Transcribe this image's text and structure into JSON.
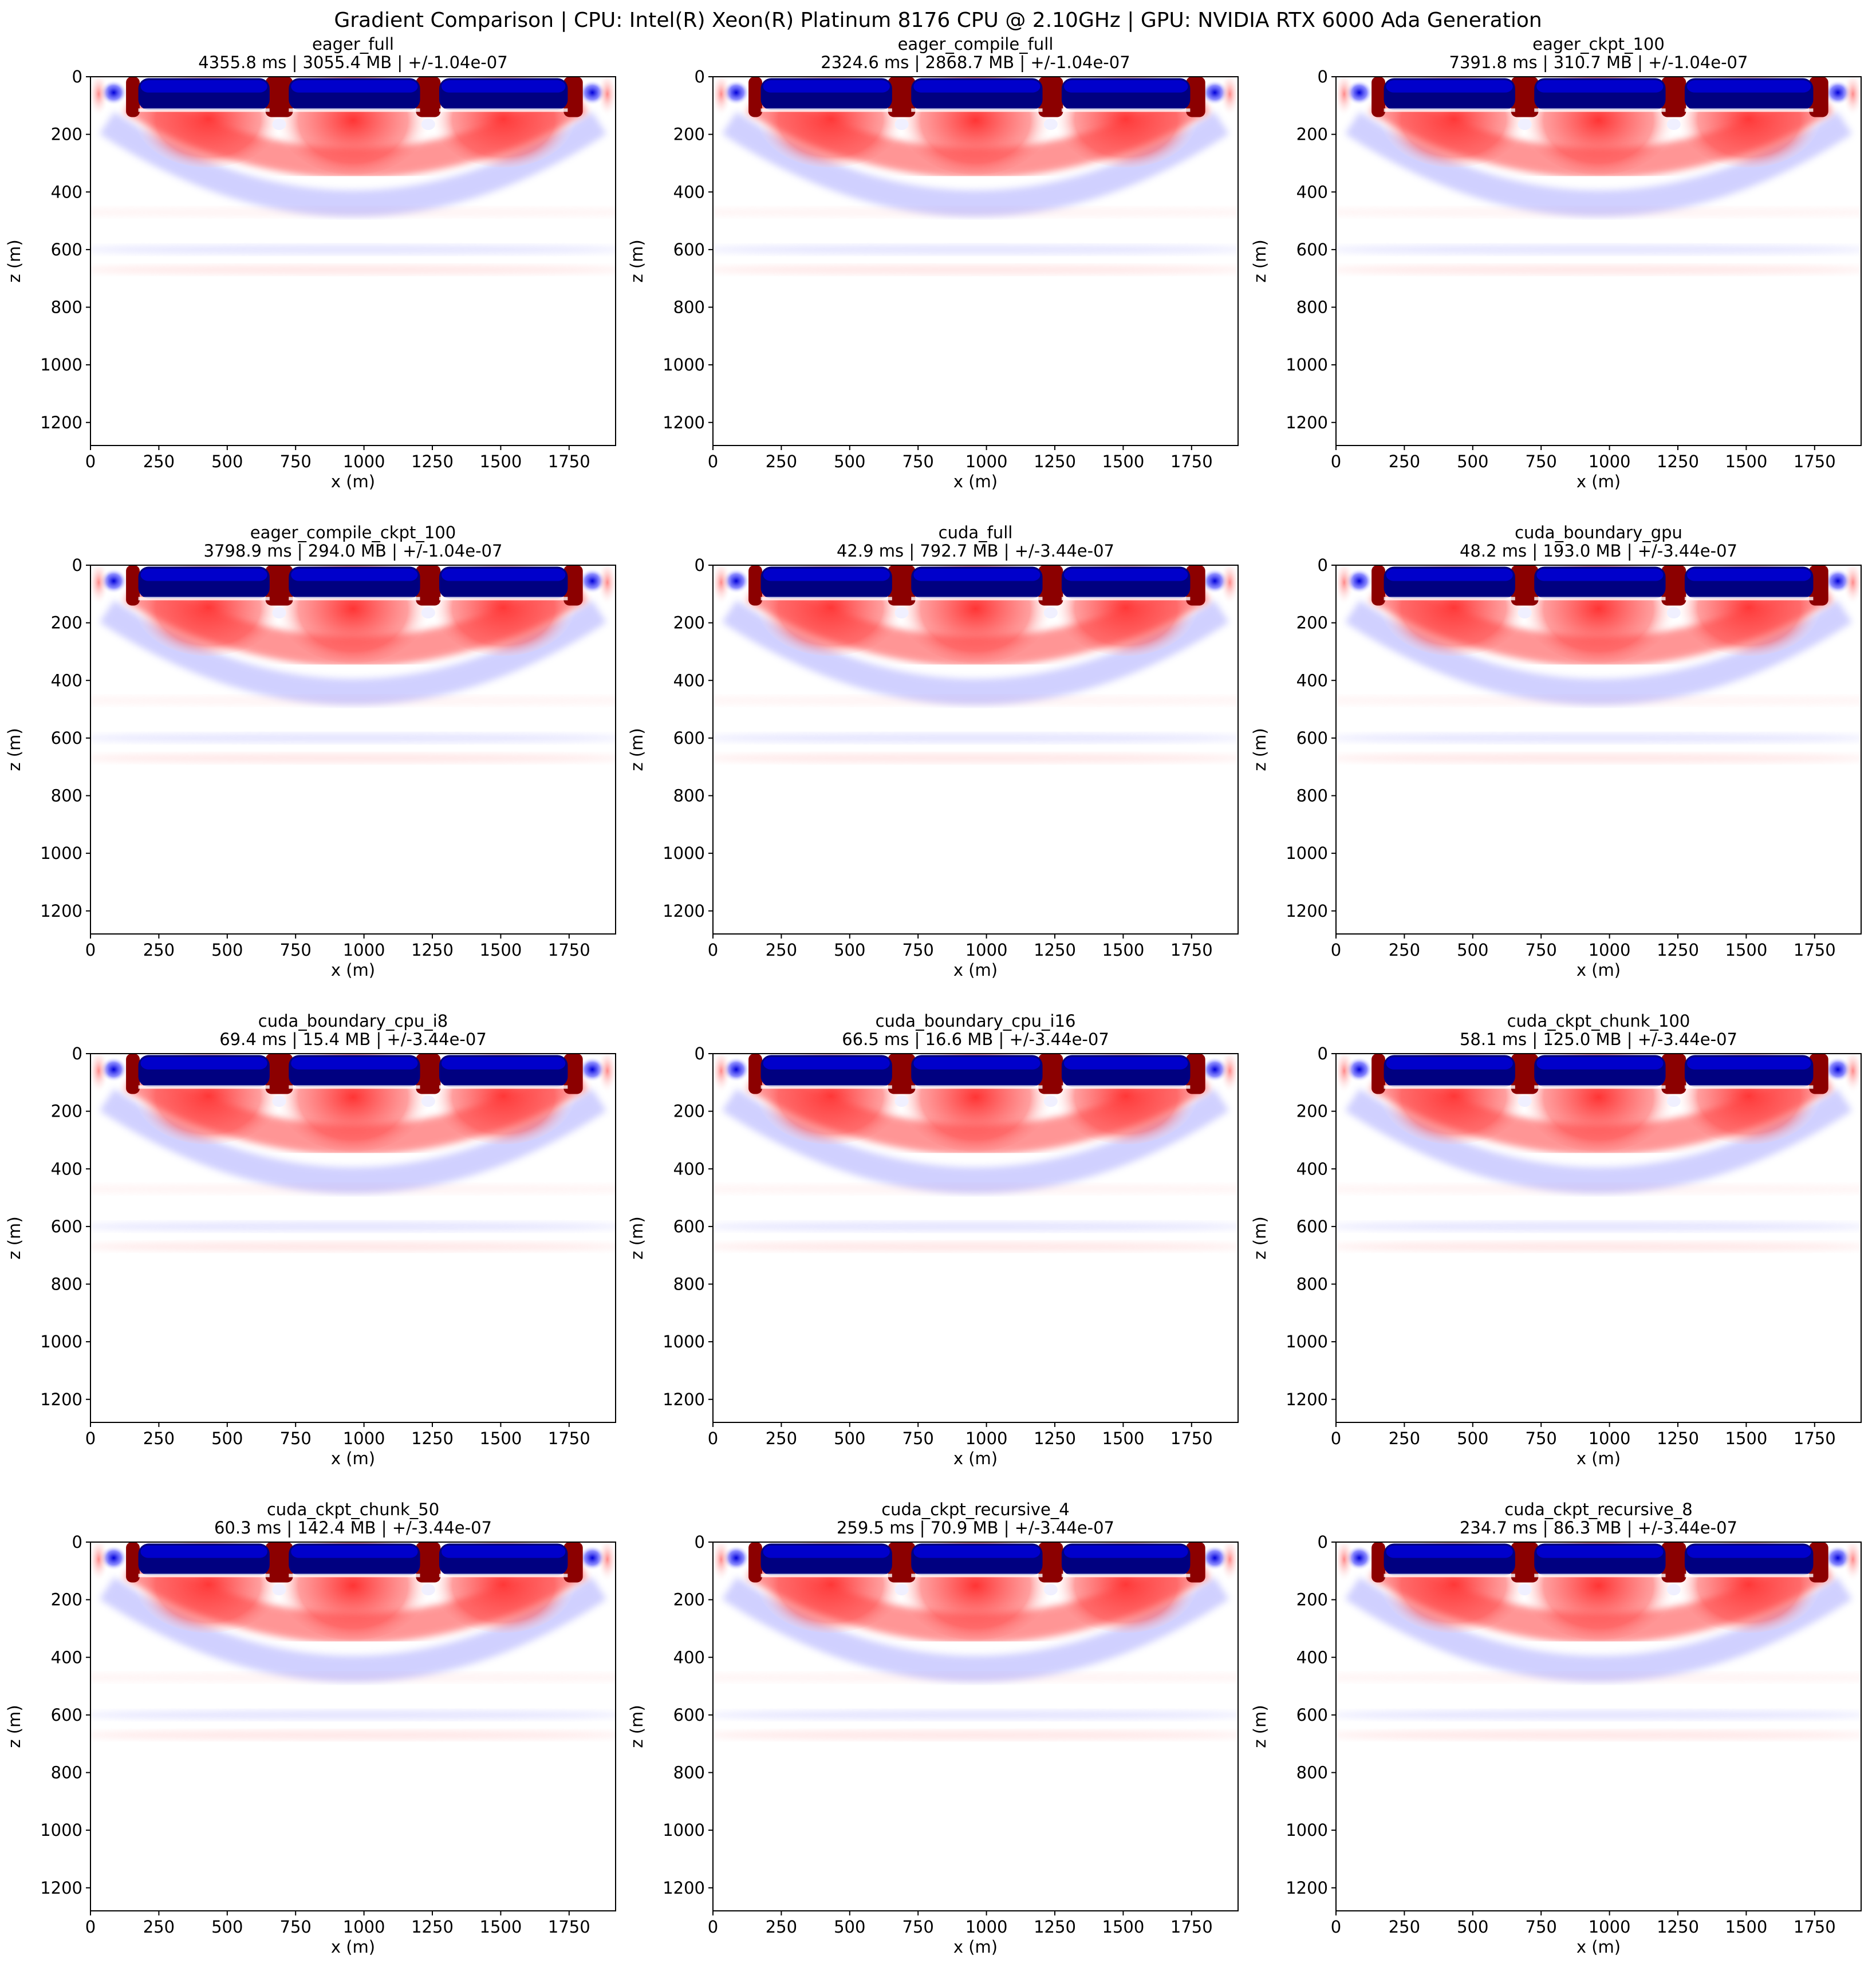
{
  "figure": {
    "suptitle": "Gradient Comparison | CPU: Intel(R) Xeon(R) Platinum 8176 CPU @ 2.10GHz | GPU: NVIDIA RTX 6000 Ada Generation"
  },
  "chart_data": [
    {
      "type": "heatmap",
      "title": "eager_full",
      "subtitle": "4355.8 ms | 3055.4 MB | +/-1.04e-07",
      "xlabel": "x (m)",
      "ylabel": "z (m)",
      "xlim": [
        0,
        1920
      ],
      "ylim": [
        1280,
        0
      ],
      "xticks": [
        0,
        250,
        500,
        750,
        1000,
        1250,
        1500,
        1750
      ],
      "yticks": [
        0,
        200,
        400,
        600,
        800,
        1000,
        1200
      ],
      "colormap": "seismic",
      "color_limit": 1.04e-07
    },
    {
      "type": "heatmap",
      "title": "eager_compile_full",
      "subtitle": "2324.6 ms | 2868.7 MB | +/-1.04e-07",
      "xlabel": "x (m)",
      "ylabel": "z (m)",
      "xlim": [
        0,
        1920
      ],
      "ylim": [
        1280,
        0
      ],
      "xticks": [
        0,
        250,
        500,
        750,
        1000,
        1250,
        1500,
        1750
      ],
      "yticks": [
        0,
        200,
        400,
        600,
        800,
        1000,
        1200
      ],
      "colormap": "seismic",
      "color_limit": 1.04e-07
    },
    {
      "type": "heatmap",
      "title": "eager_ckpt_100",
      "subtitle": "7391.8 ms | 310.7 MB | +/-1.04e-07",
      "xlabel": "x (m)",
      "ylabel": "z (m)",
      "xlim": [
        0,
        1920
      ],
      "ylim": [
        1280,
        0
      ],
      "xticks": [
        0,
        250,
        500,
        750,
        1000,
        1250,
        1500,
        1750
      ],
      "yticks": [
        0,
        200,
        400,
        600,
        800,
        1000,
        1200
      ],
      "colormap": "seismic",
      "color_limit": 1.04e-07
    },
    {
      "type": "heatmap",
      "title": "eager_compile_ckpt_100",
      "subtitle": "3798.9 ms | 294.0 MB | +/-1.04e-07",
      "xlabel": "x (m)",
      "ylabel": "z (m)",
      "xlim": [
        0,
        1920
      ],
      "ylim": [
        1280,
        0
      ],
      "xticks": [
        0,
        250,
        500,
        750,
        1000,
        1250,
        1500,
        1750
      ],
      "yticks": [
        0,
        200,
        400,
        600,
        800,
        1000,
        1200
      ],
      "colormap": "seismic",
      "color_limit": 1.04e-07
    },
    {
      "type": "heatmap",
      "title": "cuda_full",
      "subtitle": "42.9 ms | 792.7 MB | +/-3.44e-07",
      "xlabel": "x (m)",
      "ylabel": "z (m)",
      "xlim": [
        0,
        1920
      ],
      "ylim": [
        1280,
        0
      ],
      "xticks": [
        0,
        250,
        500,
        750,
        1000,
        1250,
        1500,
        1750
      ],
      "yticks": [
        0,
        200,
        400,
        600,
        800,
        1000,
        1200
      ],
      "colormap": "seismic",
      "color_limit": 3.44e-07
    },
    {
      "type": "heatmap",
      "title": "cuda_boundary_gpu",
      "subtitle": "48.2 ms | 193.0 MB | +/-3.44e-07",
      "xlabel": "x (m)",
      "ylabel": "z (m)",
      "xlim": [
        0,
        1920
      ],
      "ylim": [
        1280,
        0
      ],
      "xticks": [
        0,
        250,
        500,
        750,
        1000,
        1250,
        1500,
        1750
      ],
      "yticks": [
        0,
        200,
        400,
        600,
        800,
        1000,
        1200
      ],
      "colormap": "seismic",
      "color_limit": 3.44e-07
    },
    {
      "type": "heatmap",
      "title": "cuda_boundary_cpu_i8",
      "subtitle": "69.4 ms | 15.4 MB | +/-3.44e-07",
      "xlabel": "x (m)",
      "ylabel": "z (m)",
      "xlim": [
        0,
        1920
      ],
      "ylim": [
        1280,
        0
      ],
      "xticks": [
        0,
        250,
        500,
        750,
        1000,
        1250,
        1500,
        1750
      ],
      "yticks": [
        0,
        200,
        400,
        600,
        800,
        1000,
        1200
      ],
      "colormap": "seismic",
      "color_limit": 3.44e-07
    },
    {
      "type": "heatmap",
      "title": "cuda_boundary_cpu_i16",
      "subtitle": "66.5 ms | 16.6 MB | +/-3.44e-07",
      "xlabel": "x (m)",
      "ylabel": "z (m)",
      "xlim": [
        0,
        1920
      ],
      "ylim": [
        1280,
        0
      ],
      "xticks": [
        0,
        250,
        500,
        750,
        1000,
        1250,
        1500,
        1750
      ],
      "yticks": [
        0,
        200,
        400,
        600,
        800,
        1000,
        1200
      ],
      "colormap": "seismic",
      "color_limit": 3.44e-07
    },
    {
      "type": "heatmap",
      "title": "cuda_ckpt_chunk_100",
      "subtitle": "58.1 ms | 125.0 MB | +/-3.44e-07",
      "xlabel": "x (m)",
      "ylabel": "z (m)",
      "xlim": [
        0,
        1920
      ],
      "ylim": [
        1280,
        0
      ],
      "xticks": [
        0,
        250,
        500,
        750,
        1000,
        1250,
        1500,
        1750
      ],
      "yticks": [
        0,
        200,
        400,
        600,
        800,
        1000,
        1200
      ],
      "colormap": "seismic",
      "color_limit": 3.44e-07
    },
    {
      "type": "heatmap",
      "title": "cuda_ckpt_chunk_50",
      "subtitle": "60.3 ms | 142.4 MB | +/-3.44e-07",
      "xlabel": "x (m)",
      "ylabel": "z (m)",
      "xlim": [
        0,
        1920
      ],
      "ylim": [
        1280,
        0
      ],
      "xticks": [
        0,
        250,
        500,
        750,
        1000,
        1250,
        1500,
        1750
      ],
      "yticks": [
        0,
        200,
        400,
        600,
        800,
        1000,
        1200
      ],
      "colormap": "seismic",
      "color_limit": 3.44e-07
    },
    {
      "type": "heatmap",
      "title": "cuda_ckpt_recursive_4",
      "subtitle": "259.5 ms | 70.9 MB | +/-3.44e-07",
      "xlabel": "x (m)",
      "ylabel": "z (m)",
      "xlim": [
        0,
        1920
      ],
      "ylim": [
        1280,
        0
      ],
      "xticks": [
        0,
        250,
        500,
        750,
        1000,
        1250,
        1500,
        1750
      ],
      "yticks": [
        0,
        200,
        400,
        600,
        800,
        1000,
        1200
      ],
      "colormap": "seismic",
      "color_limit": 3.44e-07
    },
    {
      "type": "heatmap",
      "title": "cuda_ckpt_recursive_8",
      "subtitle": "234.7 ms | 86.3 MB | +/-3.44e-07",
      "xlabel": "x (m)",
      "ylabel": "z (m)",
      "xlim": [
        0,
        1920
      ],
      "ylim": [
        1280,
        0
      ],
      "xticks": [
        0,
        250,
        500,
        750,
        1000,
        1250,
        1500,
        1750
      ],
      "yticks": [
        0,
        200,
        400,
        600,
        800,
        1000,
        1200
      ],
      "colormap": "seismic",
      "color_limit": 3.44e-07
    }
  ]
}
